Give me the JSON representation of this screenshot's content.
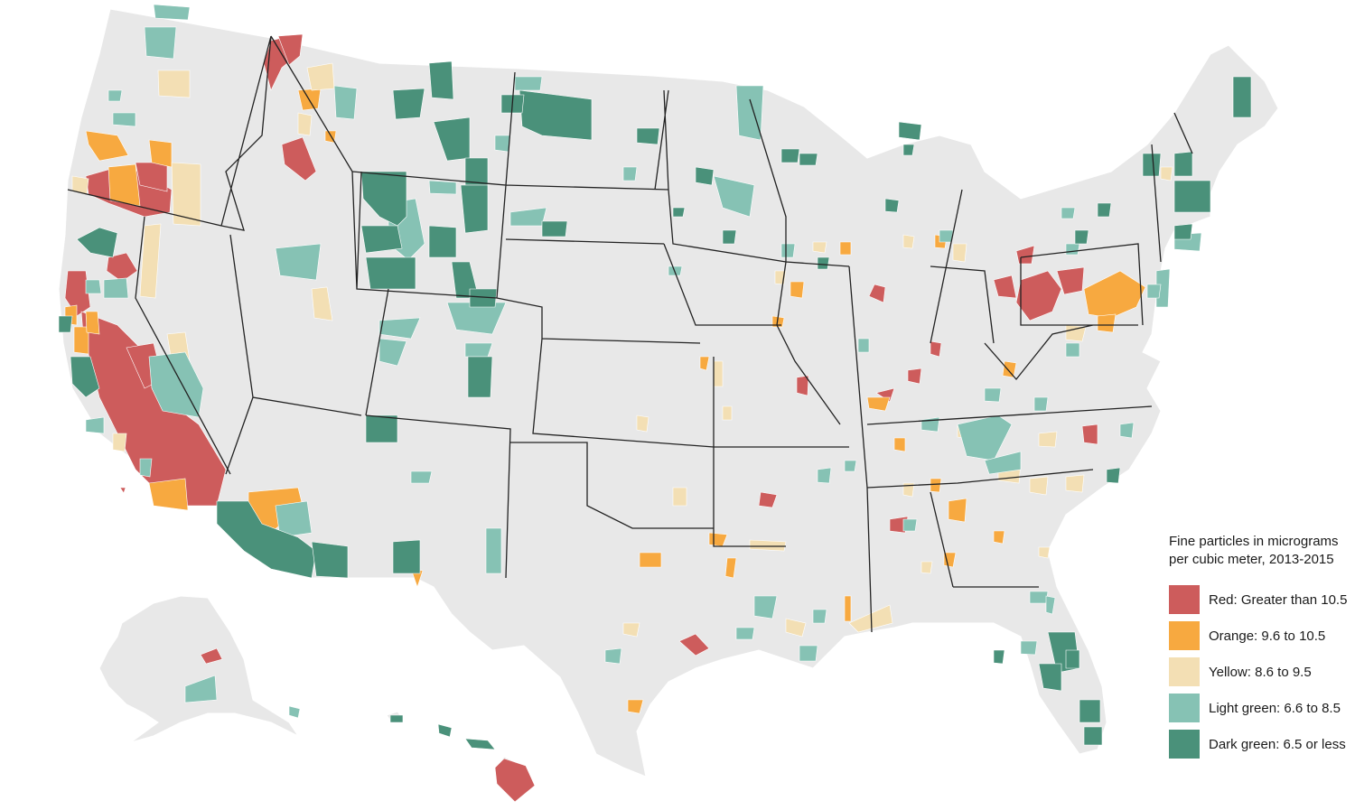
{
  "colors": {
    "land": "#e8e8e8",
    "county_border": "#ffffff",
    "state_border": "#222222",
    "red": "#cd5c5c",
    "orange": "#f7a940",
    "yellow": "#f3dfb4",
    "light_green": "#86c2b4",
    "dark_green": "#4a917a"
  },
  "legend": {
    "title_line1": "Fine particles in micrograms",
    "title_line2": "per cubic meter, 2013-2015",
    "items": [
      {
        "key": "red",
        "label": "Red: Greater than 10.5"
      },
      {
        "key": "orange",
        "label": "Orange: 9.6 to 10.5"
      },
      {
        "key": "yellow",
        "label": "Yellow: 8.6 to 9.5"
      },
      {
        "key": "light_green",
        "label": "Light green: 6.6 to 8.5"
      },
      {
        "key": "dark_green",
        "label": "Dark green: 6.5 or less"
      }
    ]
  }
}
